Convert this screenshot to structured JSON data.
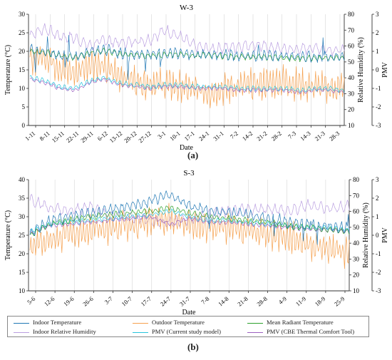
{
  "colors": {
    "indoor": "#1f77b4",
    "outdoor": "#f5a04e",
    "mrt": "#2ca02c",
    "rh": "#b99ee0",
    "pmv_model": "#27c4dc",
    "pmv_cbe": "#9b5fc0",
    "axis": "#333333",
    "grid": "#d6d6d6"
  },
  "legend": {
    "items": [
      {
        "label": "Indoor Temperature",
        "color": "#1f77b4"
      },
      {
        "label": "Outdoor Temperature",
        "color": "#f5a04e"
      },
      {
        "label": "Mean Radiant Temperature",
        "color": "#2ca02c"
      },
      {
        "label": "Indoor Relative Humidity",
        "color": "#b99ee0"
      },
      {
        "label": "PMV (Current study model)",
        "color": "#27c4dc"
      },
      {
        "label": "PMV (CBE Thermal Comfort Tool)",
        "color": "#9b5fc0"
      }
    ]
  },
  "panels": [
    {
      "label": "(a)"
    },
    {
      "label": "(b)"
    }
  ],
  "chart_data": [
    {
      "type": "line",
      "title": "W-3",
      "xlabel": "Date",
      "ylabel_left": "Temperature (°C)",
      "ylabel_right_1": "Relative Humidity (%)",
      "ylabel_right_2": "PMV",
      "ylim_left": [
        0,
        30
      ],
      "yticks_left": [
        0,
        5,
        10,
        15,
        20,
        25,
        30
      ],
      "ylim_rh": [
        10,
        80
      ],
      "yticks_rh": [
        10,
        20,
        30,
        40,
        50,
        60,
        70,
        80
      ],
      "ylim_pmv": [
        -3,
        3
      ],
      "yticks_pmv": [
        -3,
        -2,
        -1,
        0,
        1,
        2,
        3
      ],
      "grid": "vertical",
      "categories": [
        "1-11",
        "8-11",
        "15-11",
        "22-11",
        "29-11",
        "6-12",
        "13-12",
        "20-12",
        "27-12",
        "3-1",
        "10-1",
        "17-1",
        "24-1",
        "31-1",
        "7-2",
        "14-2",
        "21-2",
        "28-2",
        "7-3",
        "14-3",
        "21-3",
        "28-3"
      ],
      "series": [
        {
          "name": "Indoor Temperature",
          "axis": "left",
          "values": [
            20.5,
            20.0,
            19.0,
            18.5,
            19.8,
            20.5,
            19.5,
            19.2,
            19.0,
            19.2,
            19.5,
            19.0,
            19.2,
            19.0,
            18.8,
            18.7,
            18.8,
            18.6,
            18.4,
            18.6,
            18.5,
            18.4
          ]
        },
        {
          "name": "Mean Radiant Temperature",
          "axis": "left",
          "values": [
            20.0,
            19.8,
            18.8,
            18.3,
            19.5,
            20.2,
            19.3,
            19.0,
            18.8,
            19.0,
            19.2,
            18.8,
            19.0,
            18.7,
            18.5,
            18.4,
            18.5,
            18.2,
            18.0,
            18.3,
            18.2,
            18.0
          ]
        },
        {
          "name": "Outdoor Temperature",
          "axis": "left",
          "values": [
            17.5,
            19.0,
            15.5,
            14.0,
            17.0,
            15.5,
            13.5,
            12.0,
            11.5,
            11.0,
            10.5,
            9.5,
            9.0,
            10.0,
            10.5,
            11.0,
            11.5,
            12.0,
            11.0,
            10.5,
            10.0,
            10.5
          ]
        },
        {
          "name": "Indoor Relative Humidity",
          "axis": "rh",
          "values": [
            67,
            71,
            66,
            65,
            60,
            64,
            62,
            63,
            64,
            70,
            66,
            60,
            58,
            59,
            60,
            61,
            59,
            58,
            58,
            59,
            58,
            57
          ]
        },
        {
          "name": "PMV (Current study model)",
          "axis": "pmv",
          "values": [
            -0.4,
            -0.6,
            -0.9,
            -1.0,
            -0.6,
            -0.4,
            -0.7,
            -0.8,
            -0.9,
            -0.8,
            -0.8,
            -0.9,
            -0.9,
            -0.9,
            -1.0,
            -1.0,
            -1.0,
            -1.0,
            -1.1,
            -1.0,
            -1.0,
            -1.1
          ]
        },
        {
          "name": "PMV (CBE Thermal Comfort Tool)",
          "axis": "pmv",
          "values": [
            -0.5,
            -0.7,
            -1.0,
            -1.1,
            -0.7,
            -0.5,
            -0.8,
            -0.9,
            -1.0,
            -0.9,
            -0.9,
            -1.0,
            -1.0,
            -1.0,
            -1.1,
            -1.1,
            -1.1,
            -1.1,
            -1.2,
            -1.1,
            -1.1,
            -1.2
          ]
        }
      ]
    },
    {
      "type": "line",
      "title": "S-3",
      "xlabel": "Date",
      "ylabel_left": "Temperature (°C)",
      "ylabel_right_1": "Relative Humidity (%)",
      "ylabel_right_2": "PMV",
      "ylim_left": [
        10,
        40
      ],
      "yticks_left": [
        10,
        15,
        20,
        25,
        30,
        35,
        40
      ],
      "ylim_rh": [
        10,
        80
      ],
      "yticks_rh": [
        10,
        20,
        30,
        40,
        50,
        60,
        70,
        80
      ],
      "ylim_pmv": [
        -3,
        3
      ],
      "yticks_pmv": [
        -3,
        -2,
        -1,
        0,
        1,
        2,
        3
      ],
      "grid": "vertical",
      "categories": [
        "5-6",
        "12-6",
        "19-6",
        "26-6",
        "3-7",
        "10-7",
        "17-7",
        "24-7",
        "31-7",
        "7-8",
        "14-8",
        "21-8",
        "28-8",
        "4-9",
        "11-9",
        "18-9",
        "25-9"
      ],
      "series": [
        {
          "name": "Indoor Temperature",
          "axis": "left",
          "values": [
            25.5,
            29.0,
            30.0,
            31.0,
            32.0,
            33.0,
            34.0,
            36.0,
            33.0,
            31.5,
            31.0,
            30.5,
            29.5,
            28.5,
            28.0,
            27.5,
            27.0
          ]
        },
        {
          "name": "Mean Radiant Temperature",
          "axis": "left",
          "values": [
            25.0,
            28.0,
            29.0,
            30.0,
            30.5,
            31.0,
            31.5,
            32.5,
            31.0,
            30.0,
            29.5,
            29.0,
            28.5,
            27.5,
            27.0,
            26.5,
            26.0
          ]
        },
        {
          "name": "Outdoor Temperature",
          "axis": "left",
          "values": [
            22.0,
            24.0,
            25.5,
            26.5,
            27.0,
            28.0,
            28.5,
            29.0,
            28.0,
            27.5,
            27.0,
            26.0,
            25.5,
            24.5,
            22.5,
            21.5,
            20.5
          ]
        },
        {
          "name": "Indoor Relative Humidity",
          "axis": "rh",
          "values": [
            68,
            62,
            60,
            63,
            58,
            57,
            54,
            53,
            55,
            58,
            60,
            61,
            62,
            60,
            64,
            62,
            63
          ]
        },
        {
          "name": "PMV (Current study model)",
          "axis": "pmv",
          "values": [
            0.2,
            0.6,
            0.7,
            0.8,
            0.9,
            1.0,
            1.1,
            1.3,
            1.0,
            0.8,
            0.8,
            0.7,
            0.6,
            0.5,
            0.4,
            0.4,
            0.3
          ]
        },
        {
          "name": "PMV (CBE Thermal Comfort Tool)",
          "axis": "pmv",
          "values": [
            0.1,
            0.5,
            0.6,
            0.7,
            0.8,
            0.9,
            1.0,
            0.6,
            0.9,
            0.7,
            0.7,
            0.6,
            0.5,
            0.4,
            0.3,
            0.3,
            0.2
          ]
        }
      ]
    }
  ]
}
